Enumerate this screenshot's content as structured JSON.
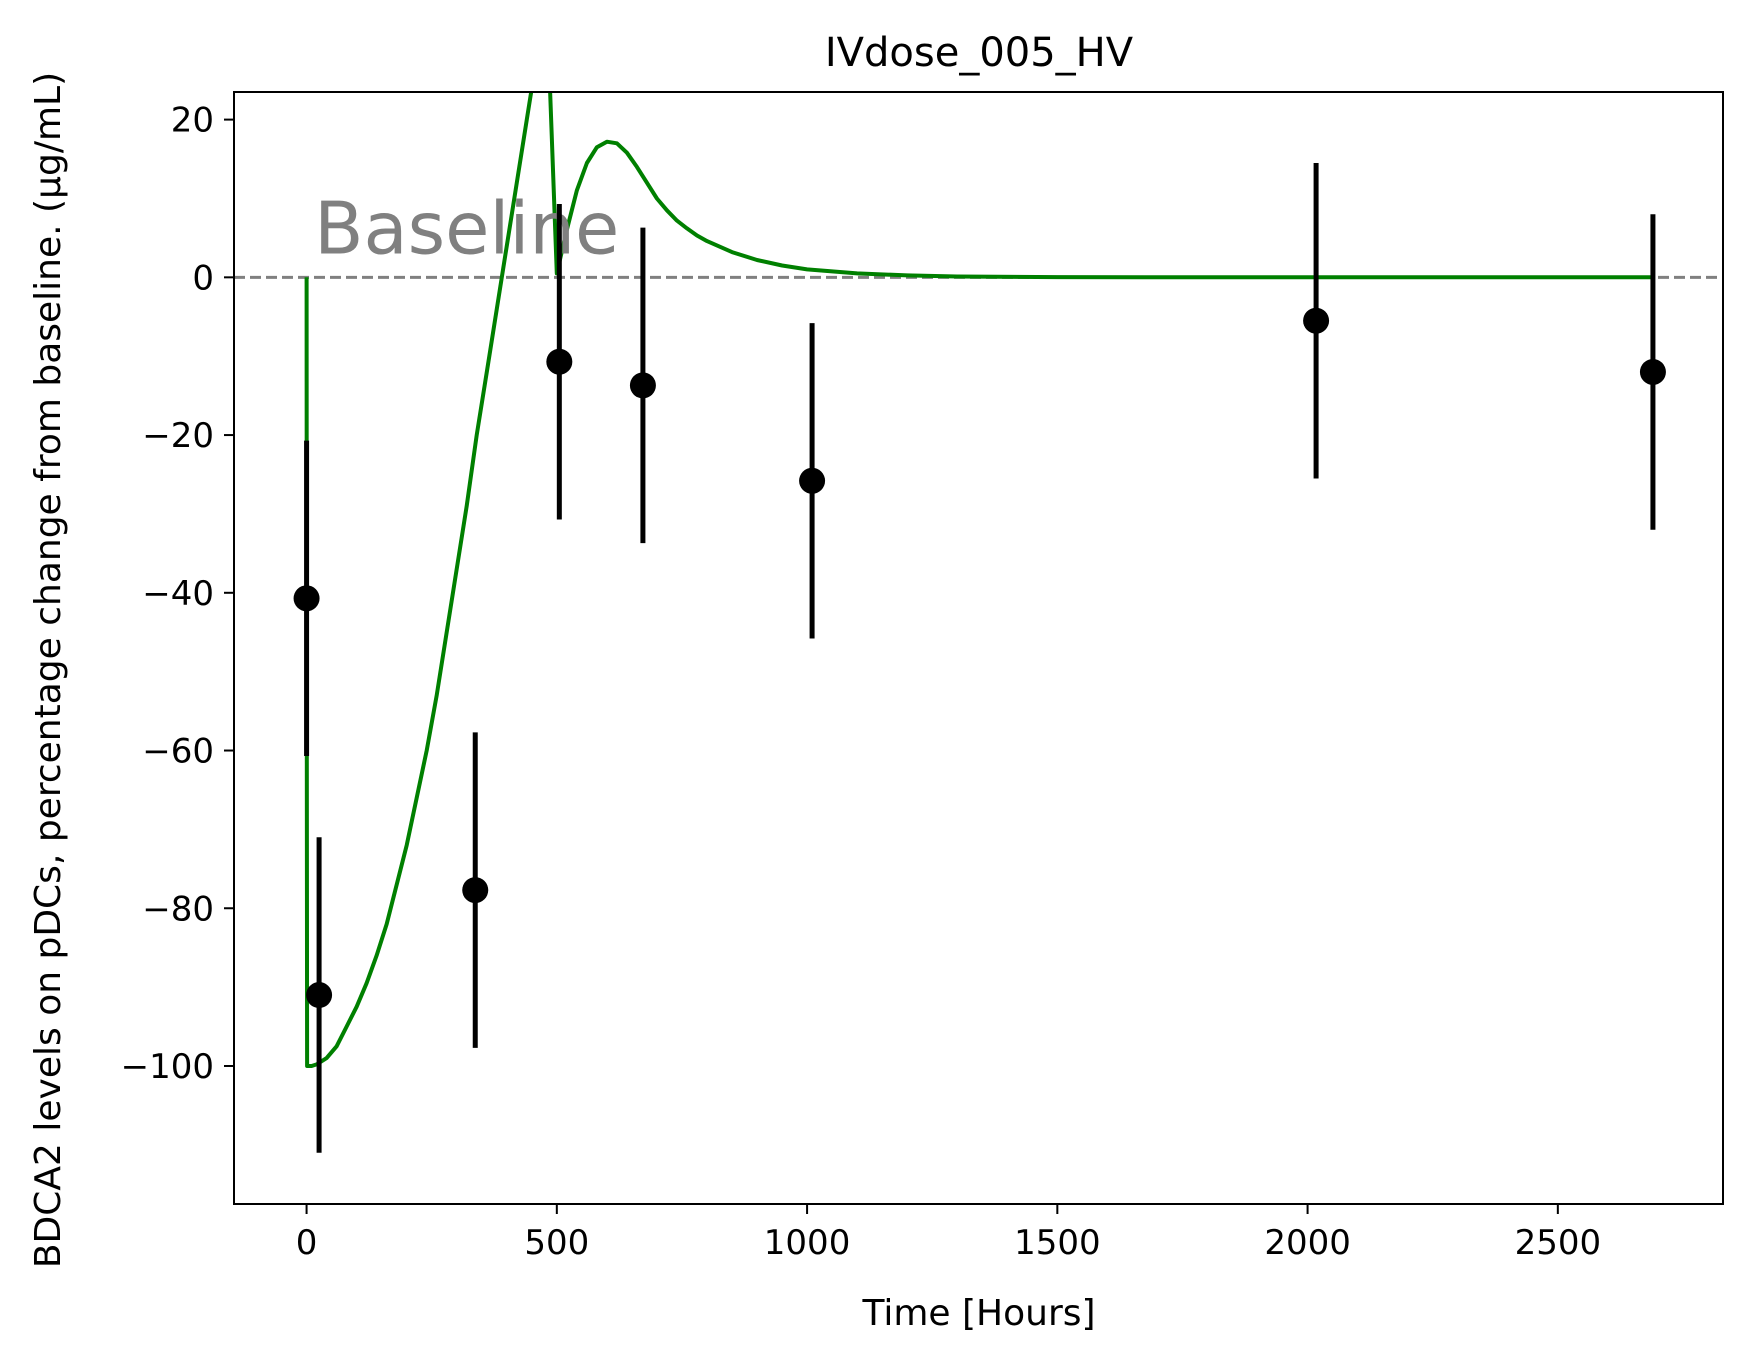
{
  "chart_data": {
    "type": "line",
    "title": "IVdose_005_HV",
    "xlabel": "Time [Hours]",
    "ylabel": "BDCA2 levels on pDCs, percentage change from baseline. (µg/mL)",
    "xlim": [
      -145,
      2830
    ],
    "ylim": [
      -117.5,
      23.5
    ],
    "xticks": [
      0,
      500,
      1000,
      1500,
      2000,
      2500
    ],
    "yticks": [
      20,
      0,
      -20,
      -40,
      -60,
      -80,
      -100
    ],
    "xtick_labels": [
      "0",
      "500",
      "1000",
      "1500",
      "2000",
      "2500"
    ],
    "ytick_labels": [
      "20",
      "0",
      "−20",
      "−40",
      "−60",
      "−80",
      "−100"
    ],
    "grid": false,
    "baseline": {
      "y": 0,
      "label": "Baseline",
      "label_x": 15,
      "label_y": 3
    },
    "colors": {
      "model": "#008000",
      "observed": "#000000",
      "baseline": "#808080"
    },
    "series": [
      {
        "kind": "model_line",
        "x": [
          0,
          0.5,
          1,
          3,
          10,
          20,
          40,
          60,
          80,
          100,
          120,
          140,
          160,
          180,
          200,
          220,
          240,
          260,
          280,
          300,
          320,
          340,
          360,
          380,
          400,
          420,
          440,
          460,
          480,
          500,
          520,
          540,
          560,
          580,
          600,
          620,
          640,
          660,
          680,
          700,
          720,
          740,
          760,
          780,
          800,
          850,
          900,
          950,
          1000,
          1100,
          1200,
          1300,
          1500,
          1800,
          2100,
          2400,
          2690
        ],
        "y": [
          0,
          -60,
          -100,
          -100,
          -100,
          -99.8,
          -99,
          -97.5,
          -95,
          -92.5,
          -89.5,
          -86,
          -82,
          -77,
          -72,
          -66,
          -60,
          -53,
          -45,
          -37,
          -29,
          -20,
          -12,
          -4,
          4,
          12,
          20,
          28,
          35,
          0.5,
          6,
          11,
          14.5,
          16.5,
          17.2,
          17,
          15.8,
          14,
          12,
          10,
          8.5,
          7.2,
          6.2,
          5.3,
          4.6,
          3.2,
          2.2,
          1.5,
          1.0,
          0.5,
          0.25,
          0.1,
          0.03,
          0,
          0,
          0,
          0
        ]
      },
      {
        "kind": "observed",
        "x": [
          0,
          25,
          337,
          505,
          672,
          1010,
          2017,
          2690
        ],
        "y": [
          -40.7,
          -91,
          -77.7,
          -10.7,
          -13.7,
          -25.8,
          -5.5,
          -12
        ],
        "yerr": [
          20,
          20,
          20,
          20,
          20,
          20,
          20,
          20
        ]
      }
    ]
  }
}
